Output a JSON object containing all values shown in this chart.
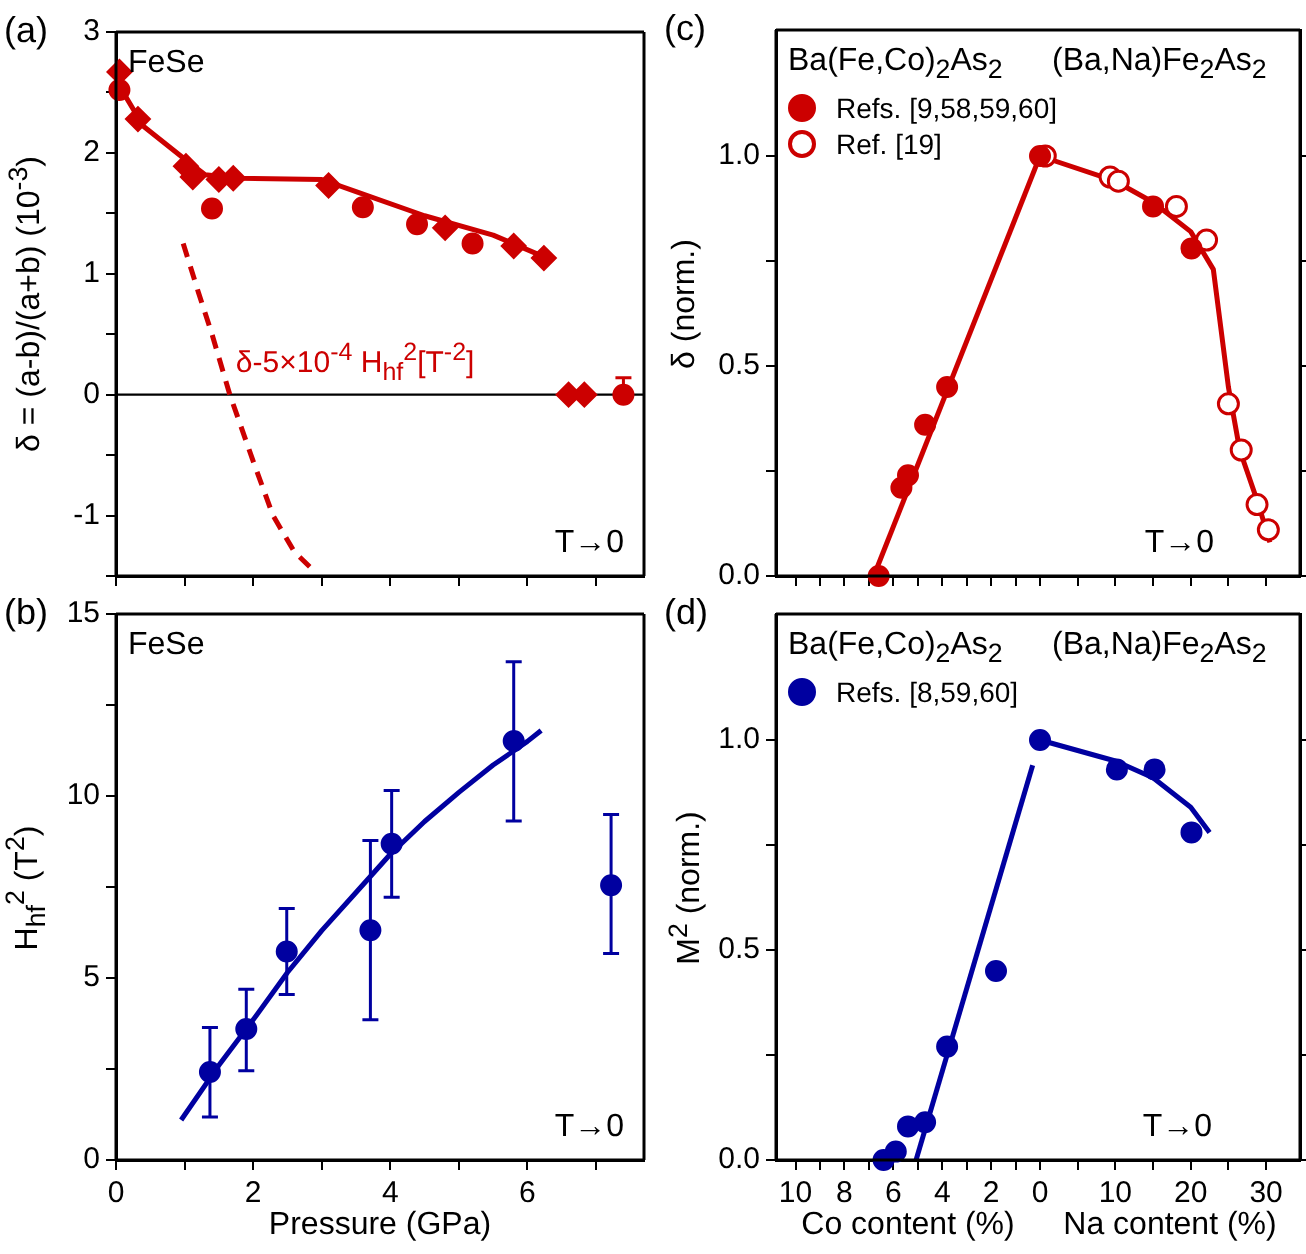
{
  "chart_data": [
    {
      "type": "scatter",
      "title": "(a)",
      "ylabel": "δ = (a-b)/(a+b)  (10$^{-3}$)",
      "xlim": [
        0,
        7.7
      ],
      "xticks": [
        {
          "value": 0,
          "label": null
        },
        {
          "value": 1,
          "label": null
        },
        {
          "value": 2,
          "label": null
        },
        {
          "value": 3,
          "label": null
        },
        {
          "value": 4,
          "label": null
        },
        {
          "value": 5,
          "label": null
        },
        {
          "value": 6,
          "label": null
        },
        {
          "value": 7,
          "label": null
        }
      ],
      "ylim": [
        -1.5,
        3
      ],
      "yticks": [
        {
          "value": -1.5,
          "label": null
        },
        -1,
        {
          "value": -0.5,
          "label": null
        },
        0,
        {
          "value": 0.5,
          "label": null
        },
        1,
        {
          "value": 1.5,
          "label": null
        },
        2,
        {
          "value": 2.5,
          "label": null
        },
        3
      ],
      "tick_labels": "y",
      "ref_lines": [
        {
          "axis": "y",
          "value": 0,
          "color": "#000000"
        }
      ],
      "annotations": [
        "FeSe",
        "T→0",
        "δ-5×10$^{-4}$ H$_{hf}$$^{2}$[T$^{-2}$]"
      ],
      "series": [
        {
          "marker": "diamond",
          "color": "#cc0000",
          "x": [
            0.05,
            0.32,
            1.02,
            1.12,
            1.5,
            1.71,
            3.1,
            4.8,
            5.8,
            6.24,
            6.6,
            6.83
          ],
          "values": [
            2.67,
            2.28,
            1.89,
            1.8,
            1.78,
            1.79,
            1.73,
            1.38,
            1.23,
            1.13,
            0,
            0
          ]
        },
        {
          "marker": "circle",
          "color": "#cc0000",
          "x": [
            0.05,
            1.4,
            3.6,
            4.39,
            5.2,
            7.4
          ],
          "values": [
            2.52,
            1.54,
            1.55,
            1.41,
            1.25,
            0
          ],
          "errors": [
            null,
            null,
            null,
            null,
            null,
            [
              0,
              0.14
            ]
          ]
        },
        {
          "type": "line",
          "marker": "none",
          "line_style": "solid",
          "color": "#cc0000",
          "x": [
            0,
            0.4,
            1.0,
            1.3,
            1.8,
            3.0,
            3.5,
            4.5,
            5.5,
            6.2
          ],
          "values": [
            2.6,
            2.22,
            1.95,
            1.82,
            1.79,
            1.78,
            1.68,
            1.48,
            1.32,
            1.15
          ]
        },
        {
          "type": "line",
          "marker": "none",
          "line_style": "dashed",
          "color": "#cc0000",
          "x": [
            0.98,
            1.2,
            1.4,
            1.66,
            2.0,
            2.29,
            2.6,
            2.93
          ],
          "values": [
            1.25,
            0.85,
            0.5,
            0,
            -0.55,
            -1.0,
            -1.3,
            -1.48
          ]
        }
      ]
    },
    {
      "type": "scatter",
      "title": "(c)",
      "ylabel": "δ (norm.)",
      "legend": "top",
      "xlim": [
        10.8,
        0
      ],
      "xticks": [
        10,
        {
          "value": 9,
          "label": null
        },
        8,
        {
          "value": 7,
          "label": null
        },
        6,
        {
          "value": 5,
          "label": null
        },
        4,
        {
          "value": 3,
          "label": null
        },
        2,
        {
          "value": 1,
          "label": null
        }
      ],
      "ylim": [
        0,
        1.3
      ],
      "yticks": [
        {
          "value": 0,
          "label": "0.0"
        },
        {
          "value": 0.25,
          "label": null
        },
        {
          "value": 0.5,
          "label": "0.5"
        },
        {
          "value": 0.75,
          "label": null
        },
        {
          "value": 1,
          "label": "1.0"
        }
      ],
      "tick_labels": "y",
      "annotations": [
        "Ba(Fe,Co)$_{2}$As$_{2}$"
      ],
      "series": [
        {
          "type": "line",
          "marker": "none",
          "line_style": "solid",
          "color": "#cc0000",
          "x": [
            6.8,
            0
          ],
          "values": [
            0,
            1.0
          ]
        },
        {
          "name": "Refs. [9,58,59,60]",
          "marker": "circle",
          "color": "#cc0000",
          "x": [
            6.6,
            5.67,
            5.4,
            4.7,
            3.8
          ],
          "values": [
            0,
            0.21,
            0.24,
            0.36,
            0.45
          ]
        }
      ]
    },
    {
      "type": "scatter",
      "legend": "left",
      "xlim": [
        0,
        34.5
      ],
      "xticks": [
        0,
        {
          "value": 5,
          "label": null
        },
        10,
        {
          "value": 15,
          "label": null
        },
        20,
        {
          "value": 25,
          "label": null
        },
        30
      ],
      "ylim": [
        0,
        1.3
      ],
      "yticks": [
        0,
        0.25,
        0.5,
        0.75,
        1
      ],
      "tick_labels": false,
      "annotations": [
        "(Ba,Na)Fe$_{2}$As$_{2}$",
        "T→0"
      ],
      "series": [
        {
          "type": "line",
          "marker": "none",
          "line_style": "solid",
          "color": "#cc0000",
          "x": [
            0,
            10,
            15,
            20,
            23,
            25,
            26.5,
            29,
            30.5
          ],
          "values": [
            1.0,
            0.94,
            0.89,
            0.82,
            0.73,
            0.45,
            0.3,
            0.17,
            0.08
          ]
        },
        {
          "marker": "circle",
          "color": "#cc0000",
          "x": [
            0,
            15.0,
            20.1
          ],
          "values": [
            1.0,
            0.88,
            0.78
          ]
        },
        {
          "name": "Ref. [19]",
          "marker": "circle-open",
          "color": "#cc0000",
          "x": [
            0.7,
            9.3,
            10.4,
            18.1,
            22.1,
            25.0,
            26.7,
            28.8,
            30.3
          ],
          "values": [
            1.0,
            0.95,
            0.94,
            0.88,
            0.8,
            0.41,
            0.3,
            0.17,
            0.11
          ]
        }
      ]
    },
    {
      "type": "scatter",
      "title": "(b)",
      "xlabel": "Pressure (GPa)",
      "ylabel": "H$_{hf}$$^{2}$ (T$^{2}$)",
      "xlim": [
        0,
        7.7
      ],
      "xticks": [
        0,
        {
          "value": 1,
          "label": null
        },
        2,
        {
          "value": 3,
          "label": null
        },
        4,
        {
          "value": 5,
          "label": null
        },
        6,
        {
          "value": 7,
          "label": null
        }
      ],
      "ylim": [
        0,
        15
      ],
      "yticks": [
        0,
        {
          "value": 2.5,
          "label": null
        },
        5,
        {
          "value": 7.5,
          "label": null
        },
        10,
        {
          "value": 12.5,
          "label": null
        },
        15
      ],
      "annotations": [
        "FeSe",
        "T→0"
      ],
      "series": [
        {
          "marker": "circle",
          "color": "#0000a0",
          "x": [
            1.37,
            1.9,
            2.49,
            3.71,
            4.02,
            5.8,
            7.22
          ],
          "values": [
            2.42,
            3.6,
            5.73,
            6.31,
            8.69,
            11.51,
            7.55
          ],
          "errors": [
            [
              1.18,
              3.64
            ],
            [
              2.45,
              4.69
            ],
            [
              4.55,
              6.91
            ],
            [
              3.85,
              8.78
            ],
            [
              7.22,
              10.15
            ],
            [
              9.31,
              13.69
            ],
            [
              5.67,
              9.49
            ]
          ]
        },
        {
          "type": "line",
          "marker": "none",
          "line_style": "solid",
          "color": "#0000a0",
          "x": [
            0.95,
            1.5,
            2,
            2.5,
            3,
            3.5,
            4,
            4.5,
            5,
            5.5,
            6,
            6.2
          ],
          "values": [
            1.1,
            2.6,
            3.85,
            5.15,
            6.3,
            7.35,
            8.4,
            9.3,
            10.1,
            10.85,
            11.5,
            11.8
          ]
        }
      ]
    },
    {
      "type": "scatter",
      "title": "(d)",
      "xlabel": "Co content (%)",
      "ylabel": "M$^{2}$ (norm.)",
      "legend": "top left",
      "xlim": [
        10.8,
        0
      ],
      "xticks": [
        10,
        {
          "value": 9,
          "label": null
        },
        8,
        {
          "value": 7,
          "label": null
        },
        6,
        {
          "value": 5,
          "label": null
        },
        4,
        {
          "value": 3,
          "label": null
        },
        2,
        {
          "value": 1,
          "label": null
        }
      ],
      "ylim": [
        0,
        1.3
      ],
      "yticks": [
        {
          "value": 0,
          "label": "0.0"
        },
        {
          "value": 0.25,
          "label": null
        },
        {
          "value": 0.5,
          "label": "0.5"
        },
        {
          "value": 0.75,
          "label": null
        },
        {
          "value": 1,
          "label": "1.0"
        }
      ],
      "annotations": [
        "Ba(Fe,Co)$_{2}$As$_{2}$"
      ],
      "series": [
        {
          "type": "line",
          "marker": "none",
          "line_style": "solid",
          "color": "#0000a0",
          "x": [
            5.07,
            0.3
          ],
          "values": [
            0,
            0.94
          ]
        },
        {
          "name": "Refs. [8,59,60]",
          "marker": "circle",
          "color": "#0000a0",
          "x": [
            6.4,
            5.9,
            5.4,
            4.7,
            3.8,
            1.8
          ],
          "values": [
            0,
            0.02,
            0.08,
            0.09,
            0.27,
            0.45
          ]
        }
      ]
    },
    {
      "type": "scatter",
      "xlabel": "Na content (%)",
      "xlim": [
        0,
        34.5
      ],
      "xticks": [
        0,
        {
          "value": 5,
          "label": null
        },
        10,
        {
          "value": 15,
          "label": null
        },
        20,
        {
          "value": 25,
          "label": null
        },
        30
      ],
      "ylim": [
        0,
        1.3
      ],
      "yticks": [
        0,
        0.25,
        0.5,
        0.75,
        1
      ],
      "tick_labels": "x",
      "annotations": [
        "(Ba,Na)Fe$_{2}$As$_{2}$",
        "T→0"
      ],
      "series": [
        {
          "type": "line",
          "marker": "none",
          "line_style": "solid",
          "color": "#0000a0",
          "x": [
            0,
            10,
            15,
            20,
            22.5
          ],
          "values": [
            1.0,
            0.95,
            0.91,
            0.84,
            0.78
          ]
        },
        {
          "marker": "circle",
          "color": "#0000a0",
          "x": [
            0,
            10.2,
            15.2,
            20.1
          ],
          "values": [
            1.0,
            0.93,
            0.93,
            0.78
          ]
        }
      ]
    }
  ]
}
